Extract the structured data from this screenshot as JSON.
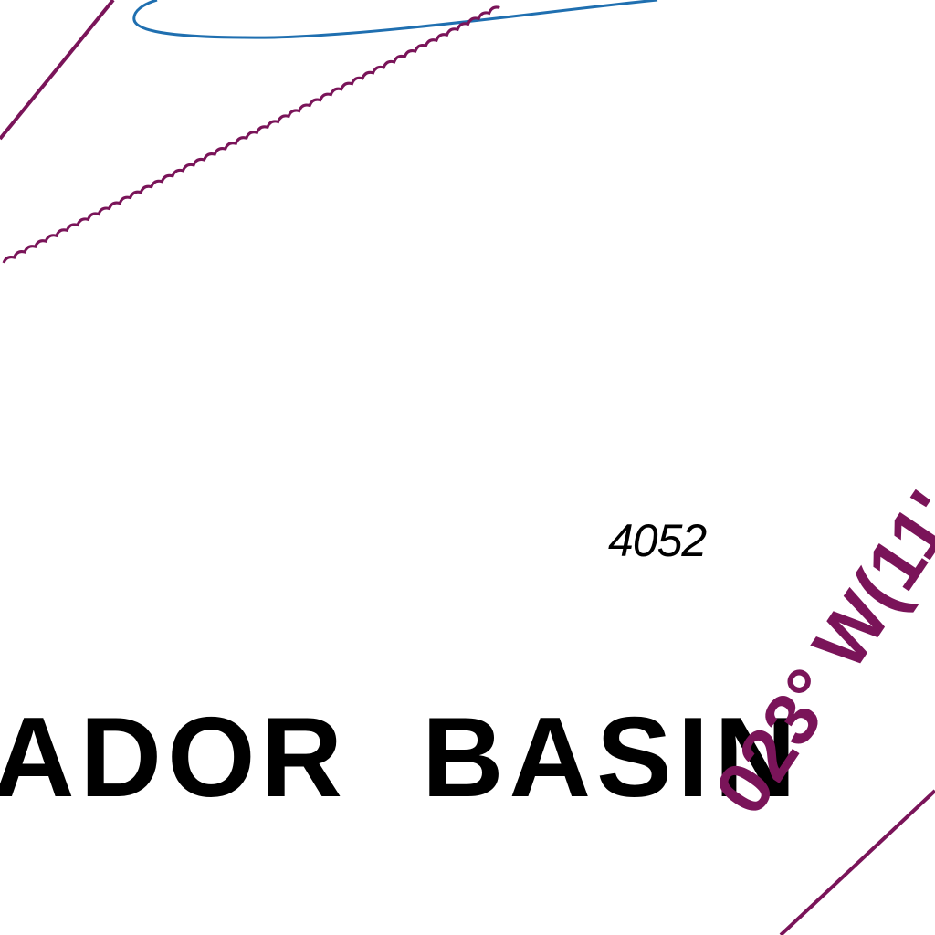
{
  "map": {
    "depth_sounding": "4052",
    "basin_name": "ADOR  BASIN",
    "bearing_text": "023° W(11'",
    "colors": {
      "limit_line": "#7a1459",
      "contour": "#1f6fb0",
      "text": "#000000"
    },
    "features": [
      "magenta-straight-limit-line",
      "magenta-wavy-limit-line",
      "blue-depth-contour",
      "magenta-bearing-line"
    ]
  }
}
